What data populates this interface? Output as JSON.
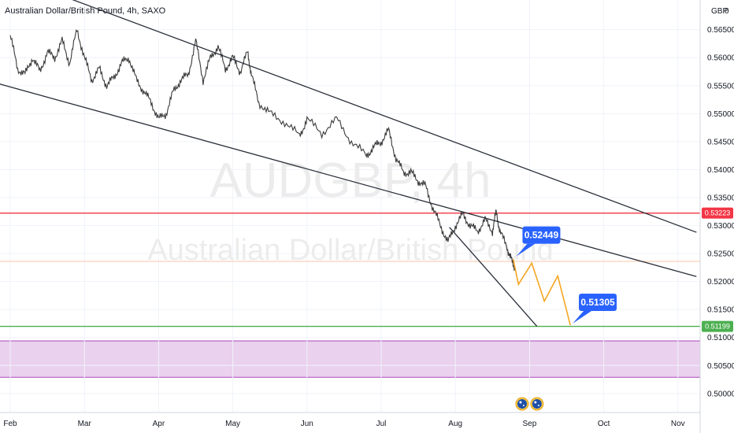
{
  "chart_data": {
    "type": "line",
    "title": "Australian Dollar/British Pound, 4h, SAXO",
    "currency": "GBP",
    "currency_menu": "0",
    "watermark_symbol": "AUDGBP, 4h",
    "watermark_name": "Australian Dollar/British Pound",
    "ylim": [
      0.4966,
      0.5703
    ],
    "y_ticks": [
      "0.56500",
      "0.56000",
      "0.55500",
      "0.55000",
      "0.54500",
      "0.54000",
      "0.53500",
      "0.53000",
      "0.52500",
      "0.52000",
      "0.51500",
      "0.51000",
      "0.50500",
      "0.50000"
    ],
    "x_ticks": [
      {
        "label": "Feb",
        "x": 0
      },
      {
        "label": "Mar",
        "x": 1
      },
      {
        "label": "Apr",
        "x": 2
      },
      {
        "label": "May",
        "x": 3
      },
      {
        "label": "Jun",
        "x": 4
      },
      {
        "label": "Jul",
        "x": 5
      },
      {
        "label": "Aug",
        "x": 6
      },
      {
        "label": "Sep",
        "x": 7
      },
      {
        "label": "Oct",
        "x": 8
      },
      {
        "label": "Nov",
        "x": 9
      }
    ],
    "grid": true,
    "series": [
      {
        "values": [
          [
            0.0,
            0.564
          ],
          [
            0.1,
            0.558
          ],
          [
            0.2,
            0.557
          ],
          [
            0.3,
            0.56
          ],
          [
            0.4,
            0.5575
          ],
          [
            0.5,
            0.561
          ],
          [
            0.6,
            0.56
          ],
          [
            0.7,
            0.563
          ],
          [
            0.8,
            0.559
          ],
          [
            0.9,
            0.565
          ],
          [
            1.0,
            0.56
          ],
          [
            1.1,
            0.556
          ],
          [
            1.2,
            0.558
          ],
          [
            1.3,
            0.555
          ],
          [
            1.4,
            0.5565
          ],
          [
            1.5,
            0.559
          ],
          [
            1.6,
            0.56
          ],
          [
            1.7,
            0.556
          ],
          [
            1.8,
            0.554
          ],
          [
            1.9,
            0.552
          ],
          [
            2.0,
            0.549
          ],
          [
            2.1,
            0.55
          ],
          [
            2.2,
            0.554
          ],
          [
            2.3,
            0.556
          ],
          [
            2.4,
            0.557
          ],
          [
            2.5,
            0.563
          ],
          [
            2.6,
            0.556
          ],
          [
            2.7,
            0.56
          ],
          [
            2.8,
            0.562
          ],
          [
            2.9,
            0.558
          ],
          [
            3.0,
            0.56
          ],
          [
            3.1,
            0.5575
          ],
          [
            3.2,
            0.561
          ],
          [
            3.25,
            0.557
          ],
          [
            3.35,
            0.552
          ],
          [
            3.5,
            0.55
          ],
          [
            3.7,
            0.5485
          ],
          [
            3.9,
            0.546
          ],
          [
            4.0,
            0.549
          ],
          [
            4.2,
            0.5465
          ],
          [
            4.4,
            0.549
          ],
          [
            4.6,
            0.545
          ],
          [
            4.8,
            0.5425
          ],
          [
            4.9,
            0.544
          ],
          [
            5.0,
            0.545
          ],
          [
            5.1,
            0.547
          ],
          [
            5.2,
            0.542
          ],
          [
            5.3,
            0.5395
          ],
          [
            5.4,
            0.5395
          ],
          [
            5.5,
            0.538
          ],
          [
            5.6,
            0.537
          ],
          [
            5.7,
            0.533
          ],
          [
            5.8,
            0.53
          ],
          [
            5.9,
            0.527
          ],
          [
            6.0,
            0.53
          ],
          [
            6.1,
            0.532
          ],
          [
            6.2,
            0.53
          ],
          [
            6.3,
            0.529
          ],
          [
            6.4,
            0.531
          ],
          [
            6.5,
            0.529
          ],
          [
            6.55,
            0.5325
          ],
          [
            6.6,
            0.529
          ],
          [
            6.7,
            0.526
          ],
          [
            6.75,
            0.524
          ],
          [
            6.8,
            0.5225
          ]
        ]
      }
    ],
    "channel_lines": [
      {
        "from": [
          -0.2,
          0.5755
        ],
        "to": [
          9.25,
          0.5288
        ]
      },
      {
        "from": [
          -0.2,
          0.5555
        ],
        "to": [
          9.25,
          0.5209
        ]
      },
      {
        "from": [
          5.92,
          0.5297
        ],
        "to": [
          7.1,
          0.512
        ]
      }
    ],
    "projection": [
      [
        6.78,
        0.524
      ],
      [
        6.85,
        0.5195
      ],
      [
        7.03,
        0.5233
      ],
      [
        7.2,
        0.5165
      ],
      [
        7.38,
        0.521
      ],
      [
        7.55,
        0.5122
      ]
    ],
    "horizontal_lines": [
      {
        "price": 0.53223,
        "label": "0.53223",
        "color": "#f23645"
      },
      {
        "price": 0.5236,
        "label": "",
        "color": "#f9c4a4"
      },
      {
        "price": 0.51199,
        "label": "0.51199",
        "color": "#4caf50"
      }
    ],
    "zone": {
      "from": 0.5094,
      "to": 0.5029,
      "fill": "#e1bee7",
      "border": "#ab47bc"
    },
    "callouts": [
      {
        "label": "0.52449",
        "x": 6.82,
        "y": 0.5245
      },
      {
        "label": "0.51305",
        "x": 7.58,
        "y": 0.5125
      }
    ],
    "event_markers": [
      {
        "x": 6.9,
        "icon": "au-flag-icon"
      },
      {
        "x": 7.1,
        "icon": "au-flag-icon"
      }
    ],
    "colors": {
      "candles": "#3a3a3a",
      "channel": "#2a2e39",
      "projection": "#f5a623",
      "callout": "#2962ff",
      "grid": "#f0f3fa"
    }
  }
}
